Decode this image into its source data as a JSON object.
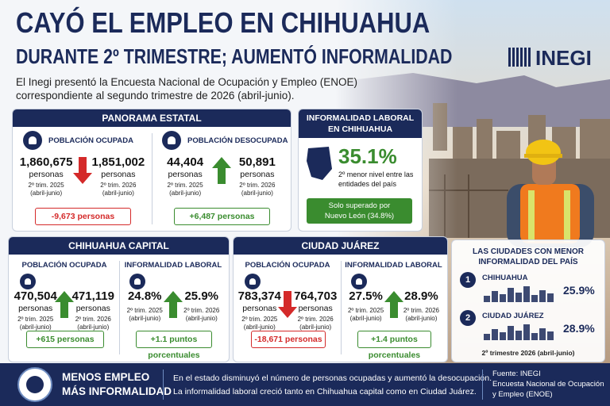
{
  "header": {
    "title": [
      "CAYÓ EL EMPLEO EN CHIHUAHUA",
      "DURANTE 2º TRIMESTRE; AUMENTÓ INFORMALIDAD"
    ],
    "logo": "INEGI",
    "intro": [
      "El Inegi presentó la Encuesta Nacional de Ocupación y Empleo (ENOE)",
      "correspondiente al segundo trimestre de 2026 (abril-junio)."
    ]
  },
  "panorama": {
    "title": "PANORAMA ESTATAL",
    "blocks": [
      {
        "label": "POBLACIÓN OCUPADA",
        "before": {
          "value": "1,860,675",
          "unit": "personas",
          "period": [
            "2º trim. 2025",
            "(abril-junio)"
          ]
        },
        "after": {
          "value": "1,851,002",
          "unit": "personas",
          "period": [
            "2º trim. 2026",
            "(abril-junio)"
          ]
        },
        "change": "-9,673 personas"
      },
      {
        "label": "POBLACIÓN DESOCUPADA",
        "before": {
          "value": "44,404",
          "unit": "personas",
          "period": [
            "2º trim. 2025",
            "(abril-junio)"
          ]
        },
        "after": {
          "value": "50,891",
          "unit": "personas",
          "period": [
            "2º trim. 2026",
            "(abril-junio)"
          ]
        },
        "change": "+6,487 personas"
      }
    ]
  },
  "informalidad": {
    "title": [
      "INFORMALIDAD LABORAL",
      "EN CHIHUAHUA"
    ],
    "value": "35.1%",
    "note": [
      "2º menor nivel entre las",
      "entidades del país"
    ],
    "badge": [
      "Solo superado por",
      "Nuevo León (34.8%)"
    ]
  },
  "capital": {
    "title": "CHIHUAHUA CAPITAL",
    "blocks": [
      {
        "label": "POBLACIÓN OCUPADA",
        "before": {
          "value": "470,504",
          "unit": "personas",
          "period": [
            "2º trim. 2025",
            "(abril-junio)"
          ]
        },
        "after": {
          "value": "471,119",
          "unit": "personas",
          "period": [
            "2º trim. 2026",
            "(abril-junio)"
          ]
        },
        "change": "+615 personas"
      },
      {
        "label": "INFORMALIDAD LABORAL",
        "before": {
          "value": "24.8%",
          "period": [
            "2º trim. 2025",
            "(abril-junio)"
          ]
        },
        "after": {
          "value": "25.9%",
          "period": [
            "2º trim. 2026",
            "(abril-junio)"
          ]
        },
        "change": "+1.1 puntos porcentuales"
      }
    ]
  },
  "juarez": {
    "title": "CIUDAD JUÁREZ",
    "blocks": [
      {
        "label": "POBLACIÓN OCUPADA",
        "before": {
          "value": "783,374",
          "unit": "personas",
          "period": [
            "2º trim. 2025",
            "(abril-junio)"
          ]
        },
        "after": {
          "value": "764,703",
          "unit": "personas",
          "period": [
            "2º trim. 2026",
            "(abril-junio)"
          ]
        },
        "change": "-18,671 personas"
      },
      {
        "label": "INFORMALIDAD LABORAL",
        "before": {
          "value": "27.5%",
          "period": [
            "2º trim. 2025",
            "(abril-junio)"
          ]
        },
        "after": {
          "value": "28.9%",
          "period": [
            "2º trim. 2026",
            "(abril-junio)"
          ]
        },
        "change": "+1.4 puntos porcentuales"
      }
    ]
  },
  "ciudades": {
    "title": [
      "LAS CIUDADES CON MENOR",
      "INFORMALIDAD DEL PAÍS"
    ],
    "items": [
      {
        "rank": "1",
        "name": "CHIHUAHUA",
        "value": "25.9%"
      },
      {
        "rank": "2",
        "name": "CIUDAD JUÁREZ",
        "value": "28.9%"
      }
    ],
    "note": "2º trimestre 2026 (abril-junio)"
  },
  "footer": {
    "headline": [
      "MENOS EMPLEO",
      "MÁS INFORMALIDAD"
    ],
    "text": [
      "En el estado disminuyó el número de personas ocupadas y aumentó la desocupación.",
      "La informalidad laboral creció tanto en Chihuahua capital como en Ciudad Juárez."
    ],
    "source": [
      "Fuente: INEGI",
      "Encuesta Nacional de Ocupación",
      "y Empleo (ENOE)"
    ]
  }
}
